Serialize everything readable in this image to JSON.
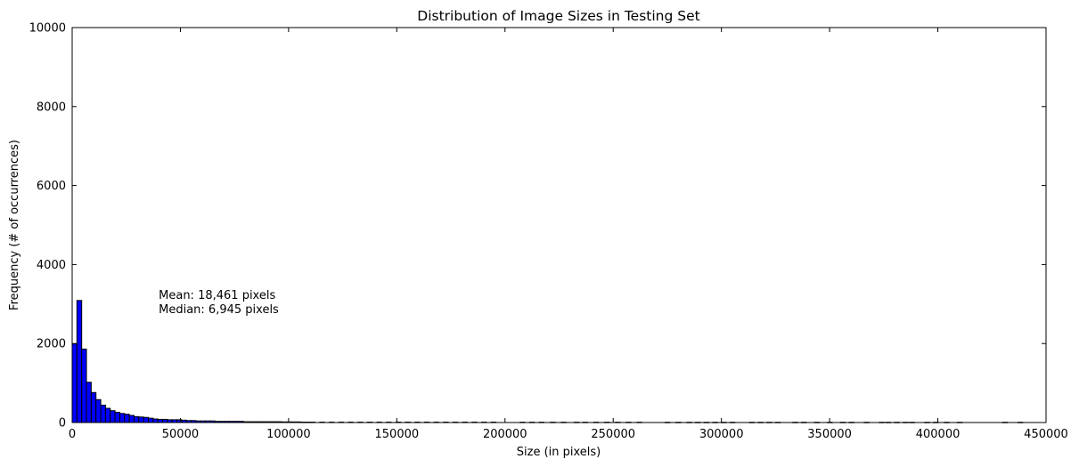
{
  "chart_data": {
    "type": "bar",
    "title": "Distribution of Image Sizes in Testing Set",
    "xlabel": "Size (in pixels)",
    "ylabel": "Frequency (# of occurrences)",
    "xlim": [
      0,
      450000
    ],
    "ylim": [
      0,
      10000
    ],
    "xticks": [
      0,
      50000,
      100000,
      150000,
      200000,
      250000,
      300000,
      350000,
      400000,
      450000
    ],
    "xtick_labels": [
      "0",
      "50000",
      "100000",
      "150000",
      "200000",
      "250000",
      "300000",
      "350000",
      "400000",
      "450000"
    ],
    "yticks": [
      0,
      2000,
      4000,
      6000,
      8000,
      10000
    ],
    "ytick_labels": [
      "0",
      "2000",
      "4000",
      "6000",
      "8000",
      "10000"
    ],
    "bin_width": 2200,
    "grid": false,
    "bar_color": "#0000ff",
    "edge_color": "#000000",
    "bins_start": [
      0,
      2200,
      4400,
      6600,
      8800,
      11000,
      13200,
      15400,
      17600,
      19800,
      22000,
      24200,
      26400,
      28600,
      30800,
      33000,
      35200,
      37400,
      39600,
      41800,
      44000,
      46200,
      48400,
      50600,
      52800,
      55000,
      57200,
      59400,
      61600,
      63800,
      66000,
      68200,
      70400,
      72600,
      74800,
      77000,
      79200,
      81400,
      83600,
      85800,
      88000,
      90200,
      92400,
      94600,
      96800,
      99000,
      101200,
      103400,
      105600,
      107800,
      110000,
      114400,
      118800,
      123200,
      127600,
      132000,
      136400,
      140800,
      145200,
      149600,
      154000,
      158400,
      162800,
      167200,
      171600,
      176000,
      180400,
      184800,
      189200,
      193600,
      207000,
      211400,
      215800,
      221000,
      226000,
      232000,
      236000,
      241000,
      246000,
      251000,
      256000,
      261000,
      274000,
      279000,
      284000,
      288000,
      292000,
      296000,
      300000,
      304000,
      313000,
      317000,
      321000,
      325000,
      333000,
      337000,
      343000,
      349000,
      355000,
      359000,
      366000,
      373000,
      376000,
      380000,
      384000,
      387000,
      394000,
      398000,
      403000,
      409000,
      430000,
      437000
    ],
    "values": [
      1990,
      3090,
      1860,
      1020,
      760,
      580,
      440,
      360,
      300,
      260,
      230,
      210,
      180,
      150,
      140,
      130,
      110,
      90,
      80,
      80,
      70,
      70,
      70,
      60,
      50,
      50,
      40,
      40,
      40,
      40,
      30,
      30,
      30,
      30,
      30,
      30,
      20,
      20,
      20,
      20,
      20,
      20,
      20,
      20,
      15,
      15,
      15,
      15,
      10,
      10,
      10,
      10,
      10,
      10,
      10,
      10,
      10,
      10,
      10,
      10,
      10,
      10,
      10,
      10,
      10,
      10,
      10,
      10,
      10,
      10,
      8,
      8,
      8,
      8,
      8,
      8,
      8,
      8,
      8,
      8,
      8,
      8,
      6,
      6,
      6,
      6,
      6,
      6,
      6,
      6,
      6,
      6,
      6,
      6,
      6,
      6,
      6,
      6,
      6,
      6,
      6,
      6,
      6,
      6,
      6,
      6,
      6,
      6,
      6,
      6,
      6,
      6
    ],
    "annotations": [
      "Mean: 18,461 pixels",
      "Median: 6,945 pixels"
    ],
    "annotation_anchor": {
      "x": 40000,
      "y": 3200
    }
  }
}
